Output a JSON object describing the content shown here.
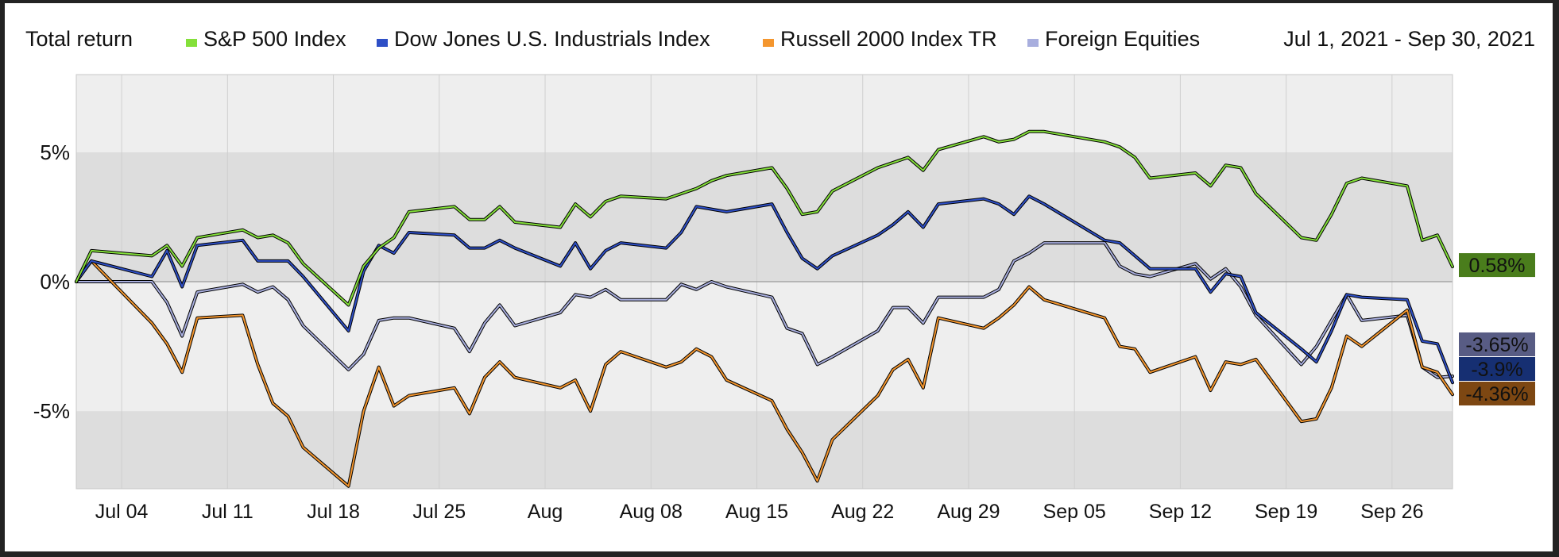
{
  "chart_data": {
    "type": "line",
    "title": "Total return",
    "date_range": "Jul 1, 2021 - Sep 30, 2021",
    "x": [
      "2021-07-01",
      "2021-07-02",
      "2021-07-06",
      "2021-07-07",
      "2021-07-08",
      "2021-07-09",
      "2021-07-12",
      "2021-07-13",
      "2021-07-14",
      "2021-07-15",
      "2021-07-16",
      "2021-07-19",
      "2021-07-20",
      "2021-07-21",
      "2021-07-22",
      "2021-07-23",
      "2021-07-26",
      "2021-07-27",
      "2021-07-28",
      "2021-07-29",
      "2021-07-30",
      "2021-08-02",
      "2021-08-03",
      "2021-08-04",
      "2021-08-05",
      "2021-08-06",
      "2021-08-09",
      "2021-08-10",
      "2021-08-11",
      "2021-08-12",
      "2021-08-13",
      "2021-08-16",
      "2021-08-17",
      "2021-08-18",
      "2021-08-19",
      "2021-08-20",
      "2021-08-23",
      "2021-08-24",
      "2021-08-25",
      "2021-08-26",
      "2021-08-27",
      "2021-08-30",
      "2021-08-31",
      "2021-09-01",
      "2021-09-02",
      "2021-09-03",
      "2021-09-07",
      "2021-09-08",
      "2021-09-09",
      "2021-09-10",
      "2021-09-13",
      "2021-09-14",
      "2021-09-15",
      "2021-09-16",
      "2021-09-17",
      "2021-09-20",
      "2021-09-21",
      "2021-09-22",
      "2021-09-23",
      "2021-09-24",
      "2021-09-27",
      "2021-09-28",
      "2021-09-29",
      "2021-09-30"
    ],
    "x_tick_labels": [
      {
        "date": "2021-07-04",
        "label": "Jul 04"
      },
      {
        "date": "2021-07-11",
        "label": "Jul 11"
      },
      {
        "date": "2021-07-18",
        "label": "Jul 18"
      },
      {
        "date": "2021-07-25",
        "label": "Jul 25"
      },
      {
        "date": "2021-08-01",
        "label": "Aug"
      },
      {
        "date": "2021-08-08",
        "label": "Aug 08"
      },
      {
        "date": "2021-08-15",
        "label": "Aug 15"
      },
      {
        "date": "2021-08-22",
        "label": "Aug 22"
      },
      {
        "date": "2021-08-29",
        "label": "Aug 29"
      },
      {
        "date": "2021-09-05",
        "label": "Sep 05"
      },
      {
        "date": "2021-09-12",
        "label": "Sep 12"
      },
      {
        "date": "2021-09-19",
        "label": "Sep 19"
      },
      {
        "date": "2021-09-26",
        "label": "Sep 26"
      }
    ],
    "y_ticks": [
      {
        "value": 5,
        "label": "5%"
      },
      {
        "value": 0,
        "label": "0%"
      },
      {
        "value": -5,
        "label": "-5%"
      }
    ],
    "xlim": [
      "2021-07-01",
      "2021-09-30"
    ],
    "ylim": [
      -8,
      8
    ],
    "grid": true,
    "legend_position": "top",
    "series": [
      {
        "name": "S&P 500 Index",
        "color": "#84e03a",
        "end_label": "0.58%",
        "end_label_bg": "#4a7d1c",
        "values": [
          0,
          1.2,
          1.0,
          1.4,
          0.6,
          1.7,
          2.0,
          1.7,
          1.8,
          1.5,
          0.7,
          -0.9,
          0.6,
          1.3,
          1.7,
          2.7,
          2.9,
          2.4,
          2.4,
          2.9,
          2.3,
          2.1,
          3.0,
          2.5,
          3.1,
          3.3,
          3.2,
          3.4,
          3.6,
          3.9,
          4.1,
          4.4,
          3.6,
          2.6,
          2.7,
          3.5,
          4.4,
          4.6,
          4.8,
          4.3,
          5.1,
          5.6,
          5.4,
          5.5,
          5.8,
          5.8,
          5.4,
          5.2,
          4.8,
          4.0,
          4.2,
          3.7,
          4.5,
          4.4,
          3.4,
          1.7,
          1.6,
          2.6,
          3.8,
          4.0,
          3.7,
          1.6,
          1.8,
          0.58
        ]
      },
      {
        "name": "Dow Jones U.S. Industrials Index",
        "color": "#2e4fc6",
        "end_label": "-3.9%",
        "end_label_bg": "#162f72",
        "values": [
          0,
          0.8,
          0.2,
          1.2,
          -0.2,
          1.4,
          1.6,
          0.8,
          0.8,
          0.8,
          0.2,
          -1.9,
          0.4,
          1.4,
          1.1,
          1.9,
          1.8,
          1.3,
          1.3,
          1.6,
          1.3,
          0.6,
          1.5,
          0.5,
          1.2,
          1.5,
          1.3,
          1.9,
          2.9,
          2.8,
          2.7,
          3.0,
          1.9,
          0.9,
          0.5,
          1.0,
          1.8,
          2.2,
          2.7,
          2.1,
          3.0,
          3.2,
          3.0,
          2.6,
          3.3,
          3.0,
          1.6,
          1.5,
          1.0,
          0.5,
          0.5,
          -0.4,
          0.3,
          0.2,
          -1.2,
          -2.6,
          -3.1,
          -1.9,
          -0.5,
          -0.6,
          -0.7,
          -2.3,
          -2.4,
          -3.9
        ]
      },
      {
        "name": "Russell 2000 Index TR",
        "color": "#f4962e",
        "end_label": "-4.36%",
        "end_label_bg": "#7d4712",
        "values": [
          0,
          0.8,
          -1.6,
          -2.4,
          -3.5,
          -1.4,
          -1.3,
          -3.2,
          -4.7,
          -5.2,
          -6.4,
          -7.9,
          -5.0,
          -3.3,
          -4.8,
          -4.4,
          -4.1,
          -5.1,
          -3.7,
          -3.1,
          -3.7,
          -4.1,
          -3.8,
          -5.0,
          -3.2,
          -2.7,
          -3.3,
          -3.1,
          -2.6,
          -2.9,
          -3.8,
          -4.6,
          -5.7,
          -6.6,
          -7.7,
          -6.1,
          -4.4,
          -3.4,
          -3.0,
          -4.1,
          -1.4,
          -1.8,
          -1.4,
          -0.9,
          -0.2,
          -0.7,
          -1.4,
          -2.5,
          -2.6,
          -3.5,
          -2.9,
          -4.2,
          -3.1,
          -3.2,
          -3.0,
          -5.4,
          -5.3,
          -4.1,
          -2.1,
          -2.5,
          -1.1,
          -3.3,
          -3.5,
          -4.36
        ]
      },
      {
        "name": "Foreign Equities",
        "color": "#a8aede",
        "end_label": "-3.65%",
        "end_label_bg": "#585c84",
        "values": [
          0,
          0,
          0,
          -0.8,
          -2.1,
          -0.4,
          -0.1,
          -0.4,
          -0.2,
          -0.7,
          -1.7,
          -3.4,
          -2.8,
          -1.5,
          -1.4,
          -1.4,
          -1.8,
          -2.7,
          -1.6,
          -0.9,
          -1.7,
          -1.2,
          -0.5,
          -0.6,
          -0.3,
          -0.7,
          -0.7,
          -0.1,
          -0.3,
          0,
          -0.2,
          -0.6,
          -1.8,
          -2.0,
          -3.2,
          -2.9,
          -1.9,
          -1.0,
          -1.0,
          -1.6,
          -0.6,
          -0.6,
          -0.3,
          0.8,
          1.1,
          1.5,
          1.5,
          0.6,
          0.3,
          0.2,
          0.7,
          0.1,
          0.5,
          -0.2,
          -1.3,
          -3.2,
          -2.5,
          -1.5,
          -0.5,
          -1.5,
          -1.3,
          -3.3,
          -3.7,
          -3.65
        ]
      }
    ]
  },
  "style": {
    "band_dark": "#dddddd",
    "band_light": "#eeeeee",
    "gridline": "#cfcfcf",
    "zero_line": "#9a9a9a",
    "outline": "#000000"
  }
}
